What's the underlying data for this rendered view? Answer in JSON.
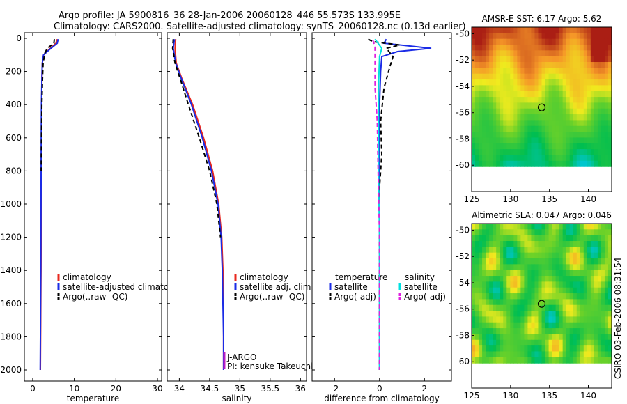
{
  "header": {
    "line1": "Argo profile: JA 5900816_36 28-Jan-2006 20060128_446 55.573S 133.995E",
    "line2": "Climatology: CARS2000. Satellite-adjusted climatology: synTS_20060128.nc (0.13d earlier)"
  },
  "colors": {
    "red": "#e8281e",
    "blue": "#1a2be6",
    "black": "#000000",
    "cyan": "#00e0e0",
    "magenta": "#e020e0"
  },
  "chart_data": [
    {
      "id": "temperature",
      "type": "line",
      "xlabel": "temperature",
      "ylabel": "",
      "xlim": [
        -2,
        31
      ],
      "ylim": [
        2080,
        0
      ],
      "xticks": [
        0,
        10,
        20,
        30
      ],
      "yticks": [
        0,
        200,
        400,
        600,
        800,
        1000,
        1200,
        1400,
        1600,
        1800,
        2000
      ],
      "legend": [
        "climatology",
        "satellite-adjusted climatolog",
        "Argo(..raw -QC)"
      ],
      "series": [
        {
          "name": "climatology",
          "color": "red",
          "dash": false,
          "points": [
            [
              5.8,
              5
            ],
            [
              5.6,
              30
            ],
            [
              4.2,
              60
            ],
            [
              2.6,
              100
            ],
            [
              2.3,
              150
            ],
            [
              2.2,
              250
            ],
            [
              2.15,
              400
            ],
            [
              2.1,
              600
            ],
            [
              2.05,
              1000
            ],
            [
              2.0,
              1400
            ],
            [
              1.9,
              1800
            ],
            [
              1.85,
              2000
            ]
          ]
        },
        {
          "name": "satellite-adjusted climatology",
          "color": "blue",
          "dash": false,
          "points": [
            [
              6.1,
              5
            ],
            [
              5.9,
              30
            ],
            [
              4.4,
              60
            ],
            [
              2.6,
              100
            ],
            [
              2.3,
              150
            ],
            [
              2.2,
              250
            ],
            [
              2.1,
              400
            ],
            [
              2.05,
              600
            ],
            [
              2.0,
              1000
            ],
            [
              1.95,
              1400
            ],
            [
              1.85,
              1800
            ],
            [
              1.8,
              2000
            ]
          ]
        },
        {
          "name": "Argo(..raw -QC)",
          "color": "black",
          "dash": true,
          "points": [
            [
              5.2,
              5
            ],
            [
              5.1,
              30
            ],
            [
              3.5,
              60
            ],
            [
              2.9,
              90
            ],
            [
              2.5,
              150
            ],
            [
              2.35,
              250
            ],
            [
              2.2,
              400
            ],
            [
              2.1,
              600
            ],
            [
              2.05,
              800
            ]
          ]
        }
      ]
    },
    {
      "id": "salinity",
      "type": "line",
      "xlabel": "salinity",
      "ylabel": "",
      "xlim": [
        33.8,
        36.1
      ],
      "ylim": [
        2080,
        0
      ],
      "xticks": [
        34,
        34.5,
        35,
        35.5,
        36
      ],
      "xticklabels": [
        "34",
        "34.5",
        "35",
        "35.5",
        "36"
      ],
      "legend": [
        "climatology",
        "satellite adj. clim.",
        "Argo(..raw -QC)"
      ],
      "annotation": [
        "J-ARGO",
        "PI: kensuke Takeuchi"
      ],
      "series": [
        {
          "name": "climatology",
          "color": "red",
          "dash": false,
          "points": [
            [
              33.94,
              5
            ],
            [
              33.93,
              60
            ],
            [
              33.95,
              150
            ],
            [
              34.05,
              250
            ],
            [
              34.22,
              400
            ],
            [
              34.4,
              600
            ],
            [
              34.55,
              800
            ],
            [
              34.65,
              1000
            ],
            [
              34.7,
              1200
            ],
            [
              34.72,
              1400
            ],
            [
              34.73,
              1600
            ],
            [
              34.73,
              1800
            ],
            [
              34.73,
              2000
            ]
          ]
        },
        {
          "name": "satellite adj. clim.",
          "color": "blue",
          "dash": false,
          "points": [
            [
              33.92,
              5
            ],
            [
              33.9,
              60
            ],
            [
              33.94,
              150
            ],
            [
              34.04,
              250
            ],
            [
              34.2,
              400
            ],
            [
              34.38,
              600
            ],
            [
              34.53,
              800
            ],
            [
              34.64,
              1000
            ],
            [
              34.69,
              1200
            ],
            [
              34.71,
              1400
            ],
            [
              34.72,
              1600
            ],
            [
              34.73,
              1800
            ],
            [
              34.73,
              2000
            ]
          ]
        },
        {
          "name": "Argo(..raw -QC)",
          "color": "black",
          "dash": true,
          "points": [
            [
              33.9,
              5
            ],
            [
              33.89,
              60
            ],
            [
              33.93,
              150
            ],
            [
              34.02,
              250
            ],
            [
              34.15,
              400
            ],
            [
              34.33,
              600
            ],
            [
              34.5,
              800
            ],
            [
              34.62,
              1000
            ],
            [
              34.68,
              1200
            ]
          ]
        }
      ]
    },
    {
      "id": "difference",
      "type": "line",
      "xlabel": "difference from climatology",
      "ylabel": "",
      "xlim": [
        -3,
        3.2
      ],
      "ylim": [
        2080,
        0
      ],
      "xticks": [
        -2,
        0,
        2
      ],
      "legend_left": {
        "title": "temperature",
        "items": [
          "satellite",
          "Argo(-adj)"
        ]
      },
      "legend_right": {
        "title": "salinity",
        "items": [
          "satellite",
          "Argo(-adj)"
        ]
      },
      "series": [
        {
          "name": "temperature satellite",
          "color": "blue",
          "dash": false,
          "points": [
            [
              0.3,
              5
            ],
            [
              0.2,
              30
            ],
            [
              2.3,
              60
            ],
            [
              0.8,
              80
            ],
            [
              0.1,
              110
            ],
            [
              0.05,
              200
            ],
            [
              0.0,
              400
            ],
            [
              0.0,
              800
            ],
            [
              0.0,
              1200
            ],
            [
              0.0,
              1600
            ],
            [
              0.0,
              2000
            ]
          ]
        },
        {
          "name": "temperature Argo(-adj)",
          "color": "black",
          "dash": true,
          "points": [
            [
              -0.5,
              5
            ],
            [
              -0.3,
              20
            ],
            [
              0.9,
              40
            ],
            [
              0.3,
              60
            ],
            [
              0.6,
              110
            ],
            [
              0.4,
              200
            ],
            [
              0.2,
              300
            ],
            [
              0.05,
              500
            ],
            [
              0.1,
              700
            ],
            [
              0.0,
              900
            ],
            [
              0.0,
              1400
            ],
            [
              0.0,
              2000
            ]
          ]
        },
        {
          "name": "salinity satellite",
          "color": "cyan",
          "dash": false,
          "points": [
            [
              -0.2,
              5
            ],
            [
              0.1,
              60
            ],
            [
              0.0,
              110
            ],
            [
              -0.05,
              300
            ],
            [
              -0.05,
              500
            ],
            [
              -0.05,
              800
            ],
            [
              0.0,
              1200
            ],
            [
              0.0,
              2000
            ]
          ]
        },
        {
          "name": "salinity Argo(-adj)",
          "color": "magenta",
          "dash": true,
          "points": [
            [
              -0.3,
              10
            ],
            [
              -0.2,
              50
            ],
            [
              -0.2,
              300
            ],
            [
              -0.1,
              500
            ],
            [
              -0.05,
              900
            ],
            [
              0.0,
              1200
            ],
            [
              0.0,
              2000
            ]
          ]
        }
      ]
    },
    {
      "id": "sst-map",
      "type": "heatmap",
      "title": "AMSR-E SST: 6.17 Argo: 5.62",
      "xlim": [
        125,
        143
      ],
      "ylim": [
        -62,
        -49.5
      ],
      "xticks": [
        125,
        130,
        135,
        140
      ],
      "yticks": [
        -50,
        -52,
        -54,
        -56,
        -58,
        -60
      ],
      "marker": [
        134.0,
        -55.6
      ]
    },
    {
      "id": "sla-map",
      "type": "heatmap",
      "title": "Altimetric SLA: 0.047 Argo: 0.046",
      "xlim": [
        125,
        143
      ],
      "ylim": [
        -62,
        -49.5
      ],
      "xticks": [
        125,
        130,
        135,
        140
      ],
      "yticks": [
        -50,
        -52,
        -54,
        -56,
        -58,
        -60
      ],
      "marker": [
        134.0,
        -55.6
      ]
    }
  ],
  "footer": {
    "stamp": "CSIRO 03-Feb-2006 08:31:54"
  }
}
